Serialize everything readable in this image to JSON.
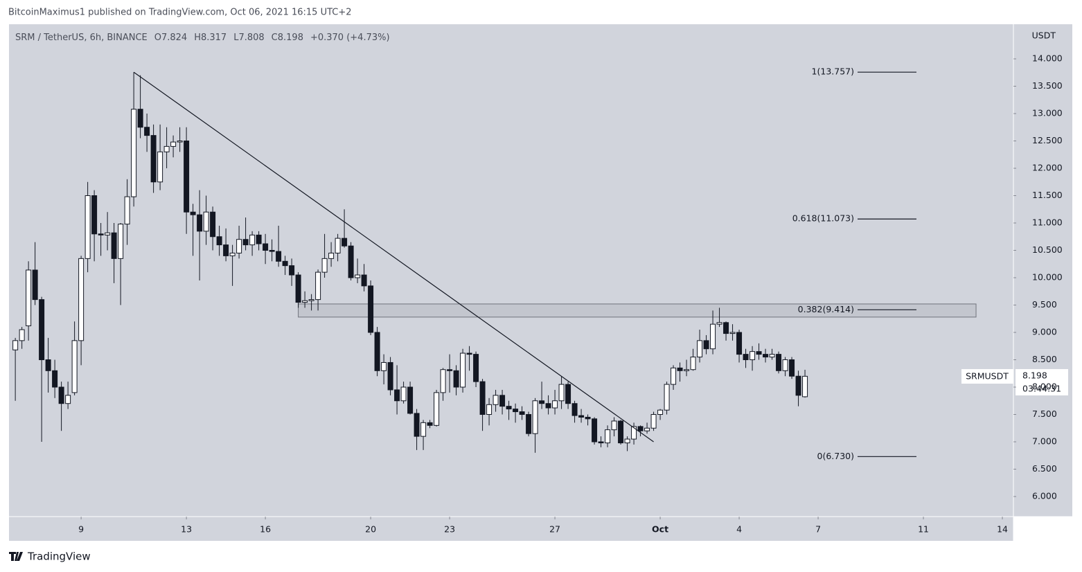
{
  "header": {
    "attribution": "BitcoinMaximus1 published on TradingView.com, Oct 06, 2021 16:15 UTC+2",
    "footer": "TradingView"
  },
  "chart_data": {
    "type": "candlestick",
    "symbol": "SRM / TetherUS, 6h, BINANCE",
    "ohlc_labels": [
      "O",
      "H",
      "L",
      "C"
    ],
    "change": "+0.370 (+4.73%)",
    "currency": "USDT",
    "ticker": "SRMUSDT",
    "countdown": "03:44:31",
    "x": [
      6.5,
      6.75,
      7,
      7.25,
      7.5,
      7.75,
      8,
      8.25,
      8.5,
      8.75,
      9,
      9.25,
      9.5,
      9.75,
      10,
      10.25,
      10.5,
      10.75,
      11,
      11.25,
      11.5,
      11.75,
      12,
      12.25,
      12.5,
      12.75,
      13,
      13.25,
      13.5,
      13.75,
      14,
      14.25,
      14.5,
      14.75,
      15,
      15.25,
      15.5,
      15.75,
      16,
      16.25,
      16.5,
      16.75,
      17,
      17.25,
      17.5,
      17.75,
      18,
      18.25,
      18.5,
      18.75,
      19,
      19.25,
      19.5,
      19.75,
      20,
      20.25,
      20.5,
      20.75,
      21,
      21.25,
      21.5,
      21.75,
      22,
      22.25,
      22.5,
      22.75,
      23,
      23.25,
      23.5,
      23.75,
      24,
      24.25,
      24.5,
      24.75,
      25,
      25.25,
      25.5,
      25.75,
      26,
      26.25,
      26.5,
      26.75,
      27,
      27.25,
      27.5,
      27.75,
      28,
      28.25,
      28.5,
      28.75,
      29,
      29.25,
      29.5,
      29.75,
      30,
      30.25,
      30.5,
      30.75,
      31,
      31.25,
      31.5,
      31.75,
      32,
      32.25,
      32.5,
      32.75,
      33,
      33.25,
      33.5,
      33.75,
      34,
      34.25,
      34.5,
      34.75,
      35,
      35.25,
      35.5,
      35.75,
      36,
      36.25,
      36.5
    ],
    "ohlc": [
      [
        8.68,
        8.9,
        7.75,
        8.85
      ],
      [
        8.85,
        9.1,
        8.7,
        9.05
      ],
      [
        9.12,
        10.3,
        8.85,
        10.14
      ],
      [
        10.14,
        10.65,
        9.5,
        9.6
      ],
      [
        9.6,
        9.65,
        7,
        8.5
      ],
      [
        8.5,
        8.9,
        7.9,
        8.3
      ],
      [
        8.3,
        8.5,
        7.8,
        8
      ],
      [
        8,
        8.1,
        7.2,
        7.7
      ],
      [
        7.7,
        8.1,
        7.6,
        7.85
      ],
      [
        7.9,
        9.2,
        7.85,
        8.85
      ],
      [
        8.85,
        10.4,
        8.4,
        10.35
      ],
      [
        10.35,
        11.75,
        10.1,
        11.5
      ],
      [
        11.5,
        11.6,
        10.3,
        10.8
      ],
      [
        10.8,
        11,
        10.4,
        10.78
      ],
      [
        10.78,
        11.2,
        10.5,
        10.82
      ],
      [
        10.82,
        11,
        9.9,
        10.35
      ],
      [
        10.35,
        11,
        9.5,
        10.98
      ],
      [
        10.98,
        11.8,
        10.6,
        11.48
      ],
      [
        11.48,
        13.757,
        11.3,
        13.08
      ],
      [
        13.08,
        13.7,
        12.55,
        12.75
      ],
      [
        12.75,
        13,
        12.3,
        12.6
      ],
      [
        12.6,
        12.8,
        11.55,
        11.75
      ],
      [
        11.75,
        12.8,
        11.6,
        12.3
      ],
      [
        12.3,
        12.75,
        12,
        12.4
      ],
      [
        12.4,
        12.6,
        12.2,
        12.48
      ],
      [
        12.48,
        12.75,
        12.3,
        12.5
      ],
      [
        12.5,
        12.75,
        10.8,
        11.2
      ],
      [
        11.2,
        11.35,
        10.4,
        11.15
      ],
      [
        11.15,
        11.6,
        9.95,
        10.85
      ],
      [
        10.85,
        11.5,
        10.6,
        11.2
      ],
      [
        11.2,
        11.3,
        10.5,
        10.75
      ],
      [
        10.75,
        10.95,
        10.4,
        10.6
      ],
      [
        10.6,
        10.9,
        10.3,
        10.4
      ],
      [
        10.4,
        10.6,
        9.85,
        10.45
      ],
      [
        10.45,
        10.95,
        10.35,
        10.7
      ],
      [
        10.7,
        11.1,
        10.5,
        10.6
      ],
      [
        10.6,
        10.85,
        10.4,
        10.78
      ],
      [
        10.78,
        10.85,
        10.5,
        10.62
      ],
      [
        10.62,
        10.8,
        10.25,
        10.5
      ],
      [
        10.5,
        10.7,
        10.3,
        10.48
      ],
      [
        10.48,
        10.95,
        10.2,
        10.3
      ],
      [
        10.3,
        10.4,
        10.05,
        10.22
      ],
      [
        10.22,
        10.35,
        9.85,
        10.05
      ],
      [
        10.05,
        10.1,
        9.45,
        9.55
      ],
      [
        9.55,
        9.75,
        9.45,
        9.58
      ],
      [
        9.58,
        9.7,
        9.4,
        9.6
      ],
      [
        9.6,
        10.15,
        9.4,
        10.1
      ],
      [
        10.1,
        10.8,
        10,
        10.35
      ],
      [
        10.35,
        10.65,
        10.2,
        10.45
      ],
      [
        10.45,
        10.8,
        10.3,
        10.72
      ],
      [
        10.72,
        11.25,
        10.55,
        10.58
      ],
      [
        10.58,
        10.65,
        9.95,
        10
      ],
      [
        10,
        10.35,
        9.9,
        10.05
      ],
      [
        10.05,
        10.25,
        9.75,
        9.85
      ],
      [
        9.85,
        9.95,
        8.95,
        9
      ],
      [
        9,
        9.1,
        8.2,
        8.3
      ],
      [
        8.3,
        8.6,
        8.05,
        8.45
      ],
      [
        8.45,
        8.55,
        7.85,
        7.95
      ],
      [
        7.95,
        8.4,
        7.5,
        7.75
      ],
      [
        7.75,
        8.1,
        7.7,
        8
      ],
      [
        8,
        8.1,
        7.5,
        7.52
      ],
      [
        7.52,
        7.6,
        6.85,
        7.1
      ],
      [
        7.1,
        7.4,
        6.85,
        7.35
      ],
      [
        7.35,
        7.4,
        7.25,
        7.3
      ],
      [
        7.3,
        7.95,
        7.28,
        7.9
      ],
      [
        7.9,
        8.35,
        7.75,
        8.32
      ],
      [
        8.32,
        8.6,
        7.9,
        8.3
      ],
      [
        8.3,
        8.4,
        7.85,
        8
      ],
      [
        8,
        8.7,
        7.9,
        8.62
      ],
      [
        8.62,
        8.75,
        8.3,
        8.6
      ],
      [
        8.6,
        8.65,
        8,
        8.1
      ],
      [
        8.1,
        8.15,
        7.2,
        7.5
      ],
      [
        7.5,
        7.8,
        7.3,
        7.68
      ],
      [
        7.68,
        7.95,
        7.55,
        7.85
      ],
      [
        7.85,
        7.95,
        7.5,
        7.65
      ],
      [
        7.65,
        7.75,
        7.4,
        7.6
      ],
      [
        7.6,
        7.7,
        7.35,
        7.55
      ],
      [
        7.55,
        7.65,
        7.4,
        7.5
      ],
      [
        7.5,
        7.55,
        7.1,
        7.15
      ],
      [
        7.15,
        7.8,
        6.8,
        7.75
      ],
      [
        7.75,
        8.1,
        7.6,
        7.7
      ],
      [
        7.7,
        7.85,
        7.5,
        7.62
      ],
      [
        7.62,
        7.95,
        7.5,
        7.75
      ],
      [
        7.75,
        8.2,
        7.6,
        8.05
      ],
      [
        8.05,
        8.1,
        7.6,
        7.7
      ],
      [
        7.7,
        7.75,
        7.35,
        7.48
      ],
      [
        7.48,
        7.6,
        7.35,
        7.45
      ],
      [
        7.45,
        7.5,
        7.3,
        7.42
      ],
      [
        7.42,
        7.45,
        6.95,
        7
      ],
      [
        7,
        7.1,
        6.9,
        6.98
      ],
      [
        6.98,
        7.3,
        6.9,
        7.22
      ],
      [
        7.22,
        7.45,
        7.1,
        7.38
      ],
      [
        7.38,
        7.4,
        6.95,
        6.98
      ],
      [
        6.98,
        7.1,
        6.83,
        7.05
      ],
      [
        7.05,
        7.35,
        6.95,
        7.28
      ],
      [
        7.28,
        7.3,
        7.1,
        7.2
      ],
      [
        7.2,
        7.35,
        7.15,
        7.25
      ],
      [
        7.25,
        7.55,
        7.2,
        7.5
      ],
      [
        7.5,
        7.6,
        7.4,
        7.58
      ],
      [
        7.58,
        8.1,
        7.5,
        8.05
      ],
      [
        8.05,
        8.4,
        7.95,
        8.35
      ],
      [
        8.35,
        8.45,
        8.1,
        8.3
      ],
      [
        8.3,
        8.5,
        8.2,
        8.32
      ],
      [
        8.32,
        8.7,
        8.3,
        8.55
      ],
      [
        8.55,
        9.05,
        8.45,
        8.85
      ],
      [
        8.85,
        8.95,
        8.6,
        8.7
      ],
      [
        8.7,
        9.4,
        8.6,
        9.15
      ],
      [
        9.15,
        9.45,
        9.1,
        9.18
      ],
      [
        9.18,
        9.2,
        8.85,
        8.98
      ],
      [
        8.98,
        9.15,
        8.85,
        9
      ],
      [
        9,
        9.05,
        8.45,
        8.6
      ],
      [
        8.6,
        8.7,
        8.35,
        8.5
      ],
      [
        8.5,
        8.75,
        8.3,
        8.65
      ],
      [
        8.65,
        8.8,
        8.5,
        8.6
      ],
      [
        8.6,
        8.7,
        8.45,
        8.55
      ],
      [
        8.55,
        8.7,
        8.5,
        8.6
      ],
      [
        8.6,
        8.65,
        8.25,
        8.3
      ],
      [
        8.3,
        8.55,
        8.2,
        8.5
      ],
      [
        8.5,
        8.55,
        8.15,
        8.2
      ],
      [
        8.2,
        8.3,
        7.65,
        7.85
      ],
      [
        7.824,
        8.317,
        7.808,
        8.198
      ]
    ],
    "xlim": [
      6.26,
      44.42
    ],
    "xticks": [
      9,
      13,
      16,
      20,
      23,
      27,
      {
        "value": 31,
        "label": "Oct"
      },
      {
        "value": 34,
        "label": "4"
      },
      {
        "value": 37,
        "label": "7"
      },
      {
        "value": 41,
        "label": "11"
      },
      {
        "value": 44,
        "label": "14"
      }
    ],
    "ylim": [
      5.633,
      14.633
    ],
    "yticks": [
      {
        "value": 6,
        "label": "6.000"
      },
      {
        "value": 6.5,
        "label": "6.500"
      },
      {
        "value": 7,
        "label": "7.000"
      },
      {
        "value": 7.5,
        "label": "7.500"
      },
      {
        "value": 8,
        "label": "8.000"
      },
      {
        "value": 8.5,
        "label": "8.500"
      },
      {
        "value": 9,
        "label": "9.000"
      },
      {
        "value": 9.5,
        "label": "9.500"
      },
      {
        "value": 10,
        "label": "10.000"
      },
      {
        "value": 10.5,
        "label": "10.500"
      },
      {
        "value": 11,
        "label": "11.000"
      },
      {
        "value": 11.5,
        "label": "11.500"
      },
      {
        "value": 12,
        "label": "12.000"
      },
      {
        "value": 12.5,
        "label": "12.500"
      },
      {
        "value": 13,
        "label": "13.000"
      },
      {
        "value": 13.5,
        "label": "13.500"
      },
      {
        "value": 14,
        "label": "14.000"
      }
    ],
    "up_color": "#ffffff",
    "down_color": "#131722",
    "background": "#d1d4dc",
    "fib_levels": [
      {
        "label": "1(13.757)",
        "value": 13.757
      },
      {
        "label": "0.618(11.073)",
        "value": 11.073
      },
      {
        "label": "0.382(9.414)",
        "value": 9.414
      },
      {
        "label": "0(6.730)",
        "value": 6.73
      }
    ],
    "trendline": {
      "x": [
        11.0,
        30.75
      ],
      "y": [
        13.757,
        7.0
      ]
    },
    "zone": {
      "x": [
        17.25,
        43.0
      ],
      "y": [
        9.28,
        9.52
      ]
    }
  }
}
